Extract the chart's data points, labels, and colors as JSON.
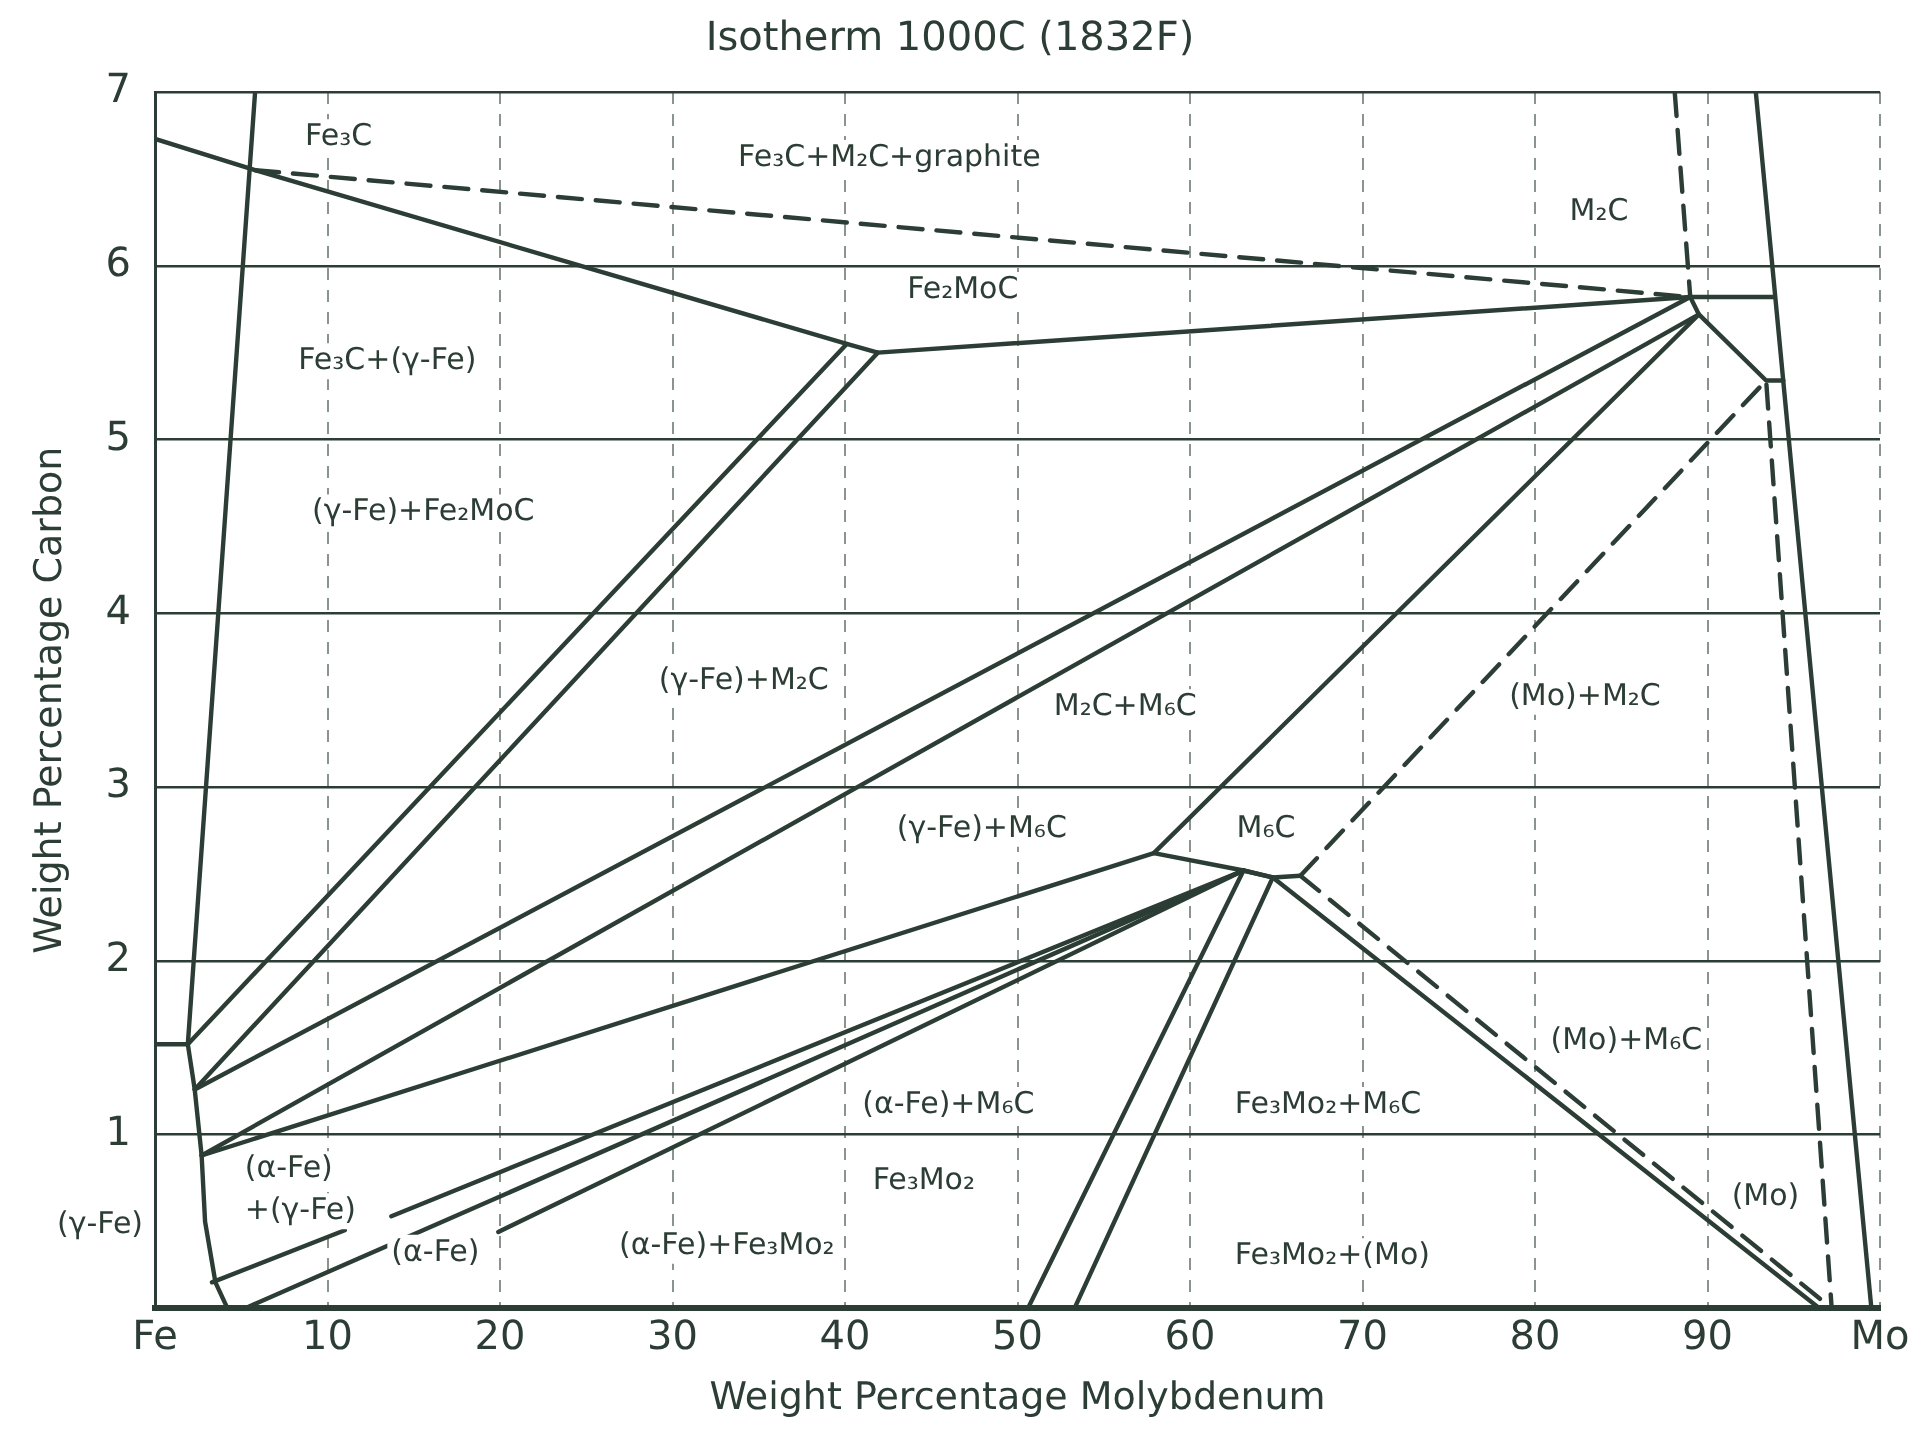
{
  "chart_data": {
    "type": "line",
    "title": "Isotherm 1000C (1832F)",
    "xlabel": "Weight Percentage Molybdenum",
    "ylabel": "Weight Percentage Carbon",
    "xlim": [
      0,
      100
    ],
    "ylim": [
      0,
      7
    ],
    "xticks": [
      {
        "value": 0,
        "label": "Fe"
      },
      10,
      20,
      30,
      40,
      50,
      60,
      70,
      80,
      90,
      {
        "value": 100,
        "label": "Mo"
      }
    ],
    "yticks": [
      1,
      2,
      3,
      4,
      5,
      6,
      7
    ],
    "grid": true,
    "legend": false,
    "marker": "none",
    "series": [
      {
        "color": "#2b3d35",
        "x": [
          0,
          5.8,
          40.1,
          41.9,
          89.0,
          93.9
        ],
        "values": [
          6.73,
          6.55,
          5.55,
          5.5,
          5.82,
          5.82
        ]
      },
      {
        "color": "#2b3d35",
        "line_style": "dashed",
        "x": [
          5.8,
          89.0
        ],
        "values": [
          6.55,
          5.82
        ]
      },
      {
        "color": "#2b3d35",
        "x": [
          5.8,
          1.9,
          2.3,
          2.7,
          2.9,
          3.5,
          4.2
        ],
        "values": [
          7.0,
          1.52,
          1.26,
          0.88,
          0.5,
          0.15,
          0
        ]
      },
      {
        "color": "#2b3d35",
        "x": [
          0,
          1.9
        ],
        "values": [
          1.52,
          1.52
        ]
      },
      {
        "color": "#2b3d35",
        "x": [
          1.9,
          40.1
        ],
        "values": [
          1.52,
          5.55
        ]
      },
      {
        "color": "#2b3d35",
        "x": [
          2.3,
          41.9
        ],
        "values": [
          1.26,
          5.5
        ]
      },
      {
        "color": "#2b3d35",
        "x": [
          2.3,
          89.0
        ],
        "values": [
          1.26,
          5.82
        ]
      },
      {
        "color": "#2b3d35",
        "x": [
          2.7,
          89.5
        ],
        "values": [
          0.88,
          5.72
        ]
      },
      {
        "color": "#2b3d35",
        "x": [
          2.7,
          57.9,
          63.1,
          64.8,
          66.4
        ],
        "values": [
          0.88,
          2.62,
          2.52,
          2.48,
          2.49
        ]
      },
      {
        "color": "#2b3d35",
        "x": [
          57.9,
          89.5
        ],
        "values": [
          2.62,
          5.72
        ]
      },
      {
        "color": "#2b3d35",
        "x": [
          3.3,
          11.0,
          12.3,
          13.7,
          63.1
        ],
        "values": [
          0.15,
          0.45,
          null,
          0.53,
          2.52
        ]
      },
      {
        "color": "#2b3d35",
        "x": [
          5.2,
          63.1
        ],
        "values": [
          0,
          2.52
        ]
      },
      {
        "color": "#2b3d35",
        "x": [
          19.9,
          63.1
        ],
        "values": [
          0.44,
          2.52
        ]
      },
      {
        "color": "#2b3d35",
        "x": [
          50.6,
          63.1,
          64.8,
          53.3
        ],
        "values": [
          0,
          2.52,
          2.48,
          0
        ]
      },
      {
        "color": "#2b3d35",
        "x": [
          64.8,
          96.5
        ],
        "values": [
          2.48,
          0
        ]
      },
      {
        "color": "#2b3d35",
        "line_style": "dashed",
        "x": [
          66.4,
          97.2
        ],
        "values": [
          2.49,
          0
        ]
      },
      {
        "color": "#2b3d35",
        "line_style": "dashed",
        "x": [
          66.4,
          93.4,
          97.2
        ],
        "values": [
          2.49,
          5.34,
          0
        ]
      },
      {
        "color": "#2b3d35",
        "x": [
          89.0,
          89.5,
          93.4,
          94.4
        ],
        "values": [
          5.82,
          5.72,
          5.34,
          5.34
        ]
      },
      {
        "color": "#2b3d35",
        "line_style": "dashed",
        "x": [
          88.1,
          89.0
        ],
        "values": [
          7.0,
          5.82
        ]
      },
      {
        "color": "#2b3d35",
        "x": [
          92.8,
          99.5
        ],
        "values": [
          7.0,
          0
        ]
      }
    ],
    "annotations": [
      "Fe₃C",
      "Fe₃C+M₂C+graphite",
      "M₂C",
      "Fe₂MoC",
      "Fe₃C+(γ-Fe)",
      "(γ-Fe)+Fe₂MoC",
      "(γ-Fe)+M₂C",
      "M₂C+M₆C",
      "(Mo)+M₂C",
      "(γ-Fe)+M₆C",
      "M₆C",
      "(α-Fe)\n+(γ-Fe)",
      "(γ-Fe)",
      "(α-Fe)",
      "(α-Fe)+Fe₃Mo₂",
      "(α-Fe)+M₆C",
      "Fe₃Mo₂",
      "Fe₃Mo₂+M₆C",
      "(Mo)+M₆C",
      "Fe₃Mo₂+(Mo)",
      "(Mo)"
    ]
  }
}
